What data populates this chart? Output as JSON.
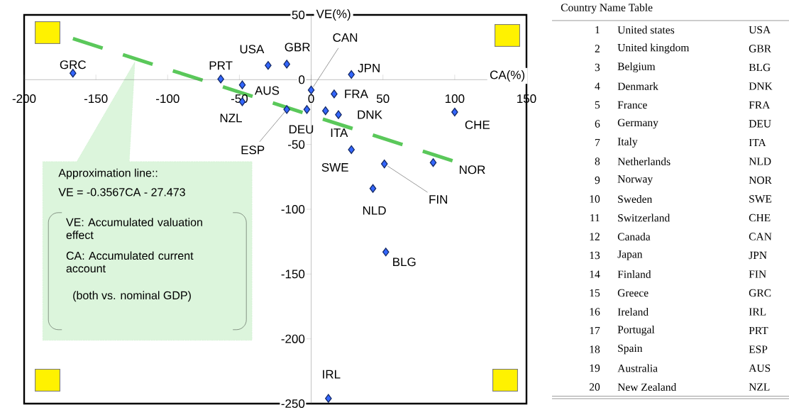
{
  "chart_data": [
    {
      "type": "scatter",
      "xlabel": "CA(%)",
      "ylabel": "VE(%)",
      "xlim": [
        -200,
        150
      ],
      "ylim": [
        -250,
        50
      ],
      "xticks": [
        -200,
        -150,
        -100,
        -50,
        0,
        50,
        100,
        150
      ],
      "yticks": [
        -250,
        -200,
        -150,
        -100,
        -50,
        0,
        50
      ],
      "series": [
        {
          "type": "line",
          "color": "#5ac85a",
          "line_style": "dashed",
          "x": [
            -166,
            100
          ],
          "values": [
            31.7,
            -63.1
          ]
        },
        {
          "type": "scatter",
          "color": "#3366ff",
          "marker": "diamond",
          "x": [
            -166,
            -63,
            -48,
            -48,
            -30,
            -17,
            -17,
            -3,
            0,
            16,
            10,
            19,
            28,
            28,
            51,
            85,
            43,
            100,
            52,
            12
          ],
          "values": [
            5,
            0.5,
            -4,
            -17,
            11,
            12,
            -23,
            -23,
            -8,
            -11,
            -24,
            -27,
            4,
            -54,
            -65,
            -64,
            -84,
            -25,
            -133,
            -246
          ]
        }
      ],
      "annotations": [
        "Approximation line::",
        "VE = -0.3567CA - 27.473",
        "VE: Accumulated valuation effect",
        "CA: Accumulated current account",
        "(both vs. nominal GDP)",
        {
          "text": "GRC",
          "x": -166,
          "y": 5
        },
        {
          "text": "PRT",
          "x": -63,
          "y": 0.5
        },
        {
          "text": "AUS",
          "x": -48,
          "y": -4
        },
        {
          "text": "NZL",
          "x": -48,
          "y": -17
        },
        {
          "text": "USA",
          "x": -30,
          "y": 11
        },
        {
          "text": "GBR",
          "x": -17,
          "y": 12
        },
        {
          "text": "ESP",
          "x": -17,
          "y": -23
        },
        {
          "text": "DEU",
          "x": -3,
          "y": -23
        },
        {
          "text": "CAN",
          "x": 0,
          "y": -8
        },
        {
          "text": "FRA",
          "x": 16,
          "y": -11
        },
        {
          "text": "ITA",
          "x": 10,
          "y": -24
        },
        {
          "text": "DNK",
          "x": 19,
          "y": -27
        },
        {
          "text": "JPN",
          "x": 28,
          "y": 4
        },
        {
          "text": "SWE",
          "x": 28,
          "y": -54
        },
        {
          "text": "FIN",
          "x": 51,
          "y": -65
        },
        {
          "text": "NOR",
          "x": 85,
          "y": -64
        },
        {
          "text": "NLD",
          "x": 43,
          "y": -84
        },
        {
          "text": "CHE",
          "x": 100,
          "y": -25
        },
        {
          "text": "BLG",
          "x": 52,
          "y": -133
        },
        {
          "text": "IRL",
          "x": 12,
          "y": -246
        }
      ]
    },
    {
      "type": "other",
      "title": "Country Name Table",
      "data_labels": true,
      "categories": [
        "United states",
        "United kingdom",
        "Belgium",
        "Denmark",
        "France",
        "Germany",
        "Italy",
        "Netherlands",
        "Norway",
        "Sweden",
        "Switzerland",
        "Canada",
        "Japan",
        "Finland",
        "Greece",
        "Ireland",
        "Portugal",
        "Spain",
        "Australia",
        "New Zealand"
      ],
      "values": [
        1,
        2,
        3,
        4,
        5,
        6,
        7,
        8,
        9,
        10,
        11,
        12,
        13,
        14,
        15,
        16,
        17,
        18,
        19,
        20
      ],
      "annotations": [
        "USA",
        "GBR",
        "BLG",
        "DNK",
        "FRA",
        "DEU",
        "ITA",
        "NLD",
        "NOR",
        "SWE",
        "CHE",
        "CAN",
        "JPN",
        "FIN",
        "GRC",
        "IRL",
        "PRT",
        "ESP",
        "AUS",
        "NZL"
      ]
    }
  ]
}
